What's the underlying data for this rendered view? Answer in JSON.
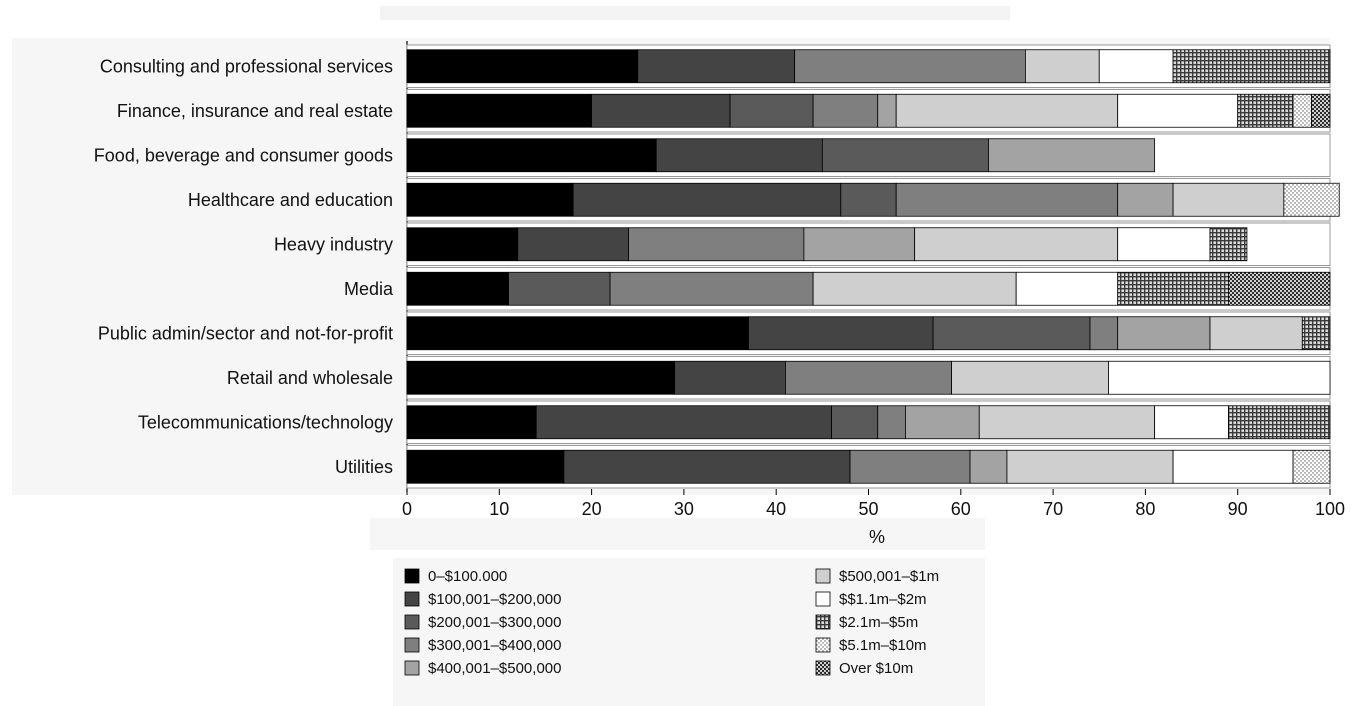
{
  "chart_data": {
    "type": "bar",
    "orientation": "horizontal",
    "stacked": true,
    "title": "",
    "xlabel": "%",
    "ylabel": "",
    "xlim": [
      0,
      100
    ],
    "xticks": [
      "0",
      "10",
      "20",
      "30",
      "40",
      "50",
      "60",
      "70",
      "80",
      "90",
      "100"
    ],
    "grid": false,
    "legend_position": "bottom",
    "categories": [
      "Consulting and professional services",
      "Finance, insurance and real estate",
      "Food, beverage and consumer goods",
      "Healthcare and education",
      "Heavy industry",
      "Media",
      "Public admin/sector and not-for-profit",
      "Retail and wholesale",
      "Telecommunications/technology",
      "Utilities"
    ],
    "series": [
      {
        "name": "0–$100.000",
        "color": "#000000",
        "pattern": "solid",
        "values": [
          25,
          20,
          27,
          18,
          12,
          11,
          37,
          29,
          14,
          17
        ]
      },
      {
        "name": "$100,001–$200,000",
        "color": "#444444",
        "pattern": "solid",
        "values": [
          17,
          15,
          18,
          29,
          12,
          0,
          20,
          12,
          32,
          31
        ]
      },
      {
        "name": "$200,001–$300,000",
        "color": "#5a5a5a",
        "pattern": "solid",
        "values": [
          0,
          9,
          18,
          6,
          0,
          11,
          17,
          0,
          5,
          0
        ]
      },
      {
        "name": "$300,001–$400,000",
        "color": "#7f7f7f",
        "pattern": "solid",
        "values": [
          25,
          7,
          0,
          24,
          19,
          22,
          3,
          18,
          3,
          13
        ]
      },
      {
        "name": "$400,001–$500,000",
        "color": "#a3a3a3",
        "pattern": "solid",
        "values": [
          0,
          2,
          18,
          6,
          12,
          0,
          10,
          0,
          8,
          4
        ]
      },
      {
        "name": "$500,001–$1m",
        "color": "#cfcfcf",
        "pattern": "solid",
        "values": [
          8,
          24,
          0,
          12,
          22,
          22,
          10,
          17,
          19,
          18
        ]
      },
      {
        "name": "$$1.1m–$2m",
        "color": "#ffffff",
        "pattern": "solid",
        "values": [
          8,
          13,
          0,
          0,
          10,
          11,
          0,
          24,
          8,
          13
        ]
      },
      {
        "name": "$2.1m–$5m",
        "color": "#6b6b6b",
        "pattern": "grid",
        "values": [
          17,
          6,
          0,
          0,
          4,
          12,
          3,
          0,
          11,
          0
        ]
      },
      {
        "name": "$5.1m–$10m",
        "color": "#9a9a9a",
        "pattern": "dots",
        "values": [
          0,
          2,
          0,
          6,
          0,
          0,
          0,
          0,
          0,
          4
        ]
      },
      {
        "name": "Over $10m",
        "color": "#5e5e5e",
        "pattern": "checker",
        "values": [
          0,
          2,
          0,
          0,
          0,
          11,
          0,
          0,
          0,
          0
        ]
      }
    ]
  }
}
